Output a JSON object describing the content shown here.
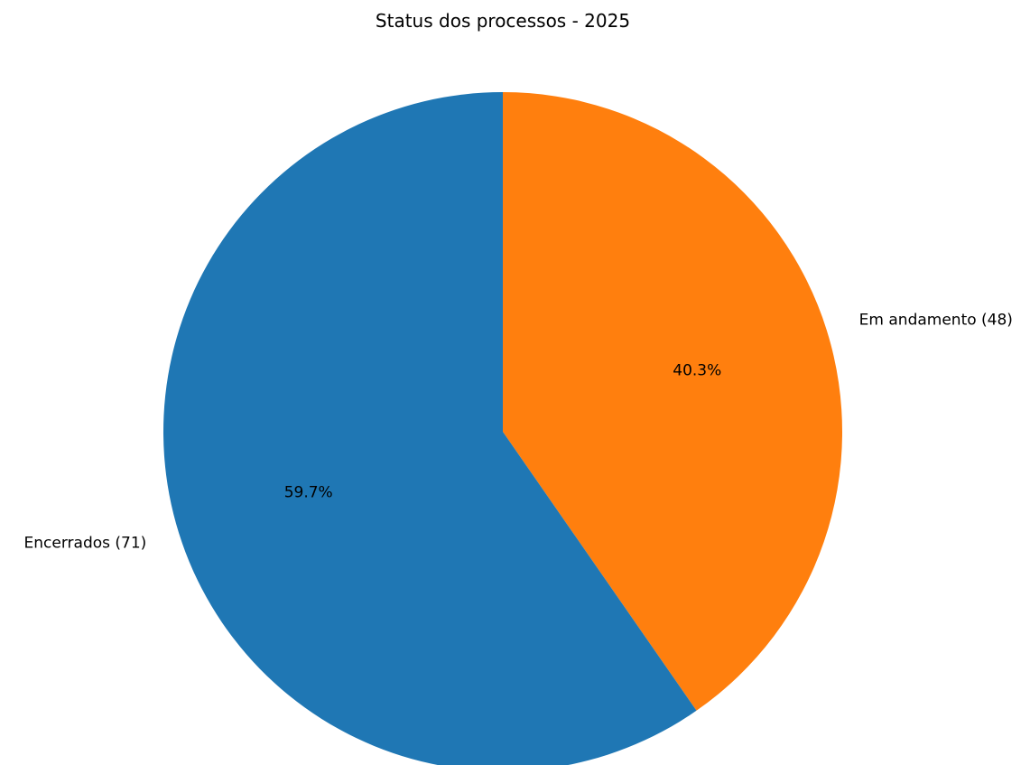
{
  "chart_data": {
    "type": "pie",
    "title": "Status dos processos - 2025",
    "slices": [
      {
        "label": "Em andamento (48)",
        "value": 48,
        "percent_label": "40.3%",
        "color": "#ff7f0e"
      },
      {
        "label": "Encerrados (71)",
        "value": 71,
        "percent_label": "59.7%",
        "color": "#1f77b4"
      }
    ],
    "start_angle_deg": 90,
    "direction": "clockwise",
    "legend": "none"
  }
}
